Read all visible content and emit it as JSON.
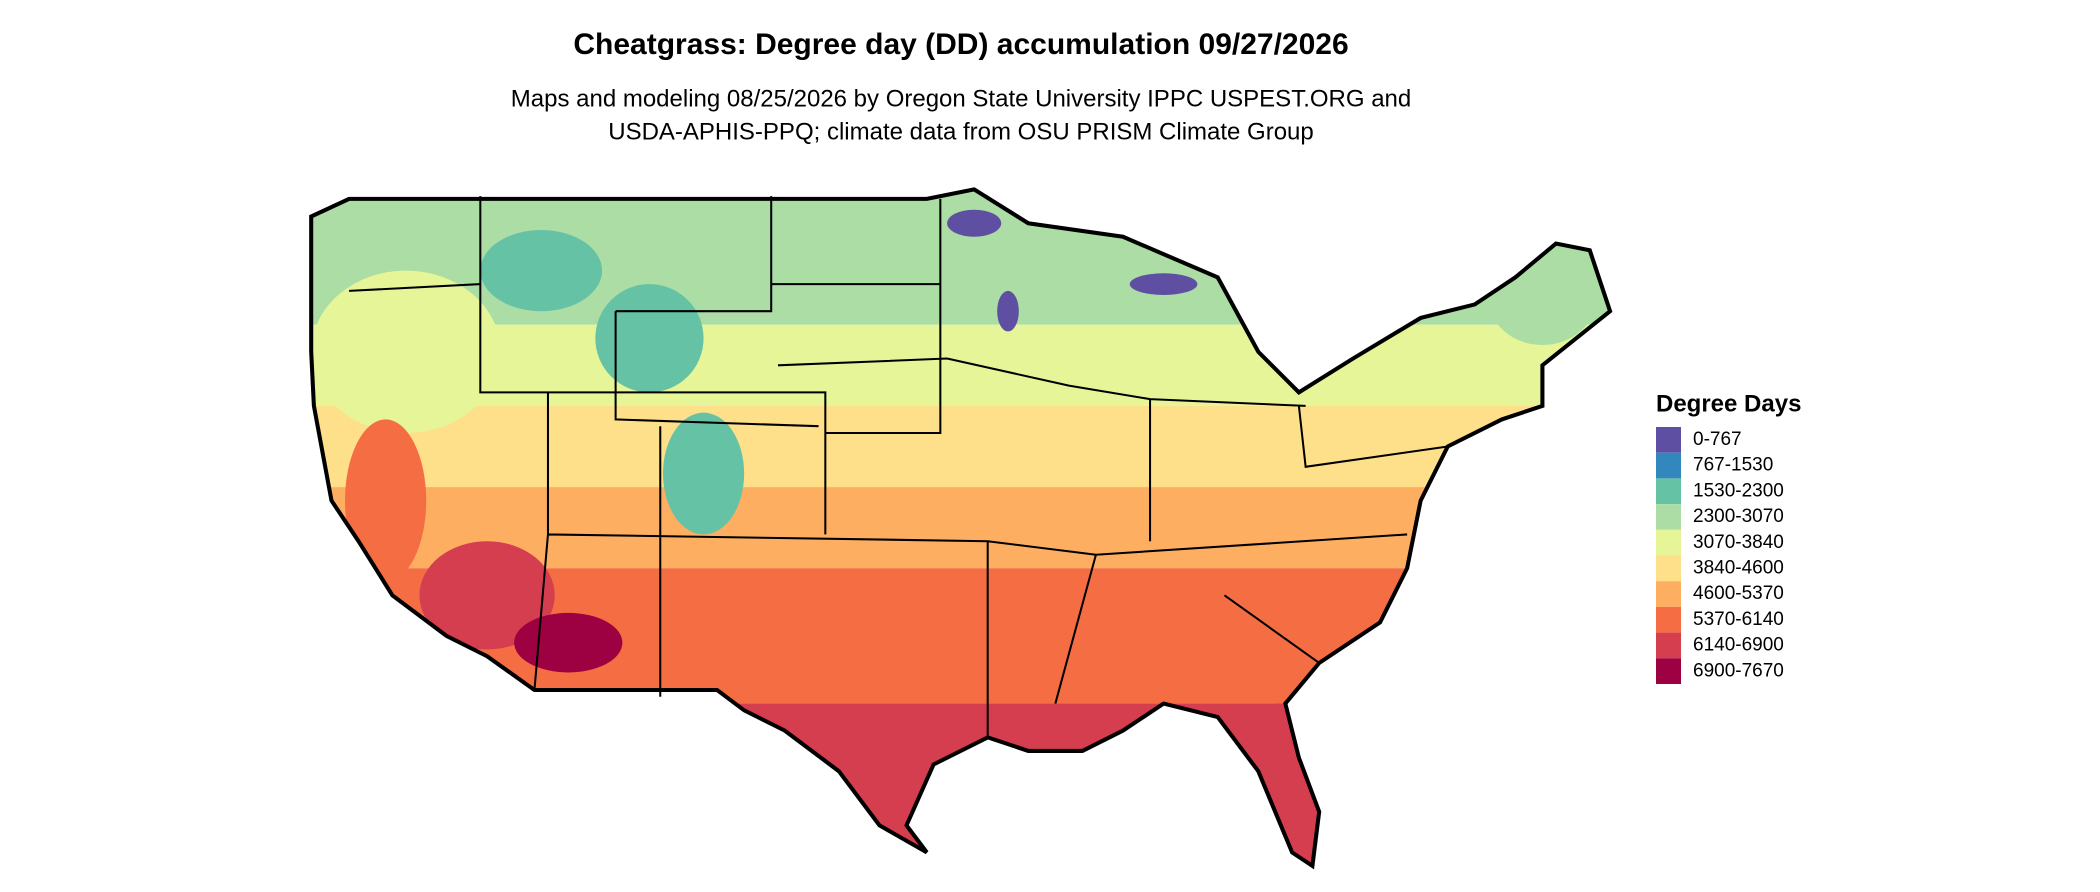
{
  "header": {
    "title": "Cheatgrass: Degree day (DD) accumulation 09/27/2026",
    "subtitle_lines": [
      "Maps and modeling 08/25/2026 by Oregon State University IPPC USPEST.ORG and",
      "USDA-APHIS-PPQ; climate data from OSU PRISM Climate Group"
    ]
  },
  "legend": {
    "title": "Degree Days",
    "items": [
      {
        "label": "0-767",
        "color": "#5e4fa2"
      },
      {
        "label": "767-1530",
        "color": "#3288bd"
      },
      {
        "label": "1530-2300",
        "color": "#66c2a5"
      },
      {
        "label": "2300-3070",
        "color": "#abdda4"
      },
      {
        "label": "3070-3840",
        "color": "#e6f598"
      },
      {
        "label": "3840-4600",
        "color": "#fee08b"
      },
      {
        "label": "4600-5370",
        "color": "#fdae61"
      },
      {
        "label": "5370-6140",
        "color": "#f46d43"
      },
      {
        "label": "6140-6900",
        "color": "#d53e4f"
      },
      {
        "label": "6900-7670",
        "color": "#9e0142"
      }
    ]
  }
}
